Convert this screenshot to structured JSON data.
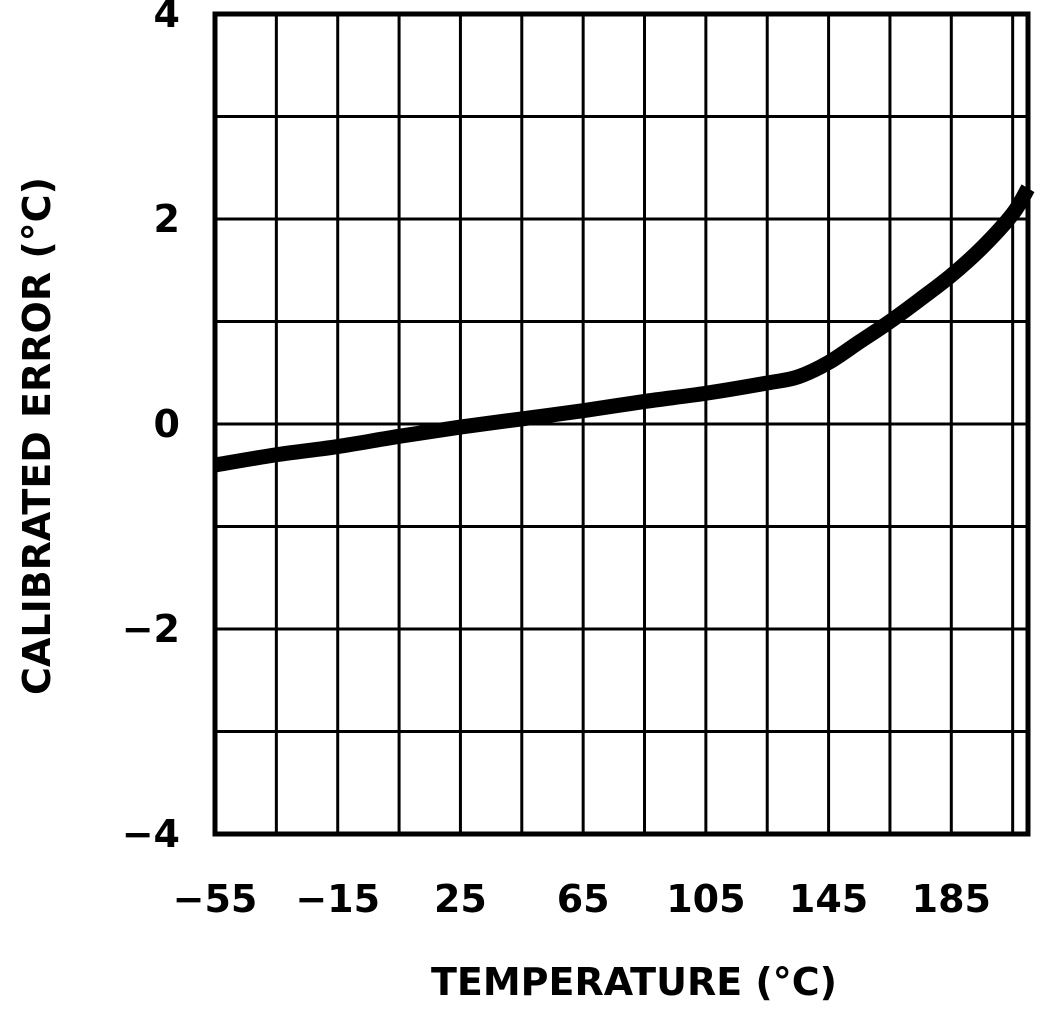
{
  "chart_data": {
    "type": "line",
    "title": "",
    "xlabel": "TEMPERATURE (°C)",
    "ylabel": "CALIBRATED ERROR (°C)",
    "xlim": [
      -55,
      210
    ],
    "ylim": [
      -4,
      4
    ],
    "grid": true,
    "x_ticks": [
      -55,
      -15,
      25,
      65,
      105,
      145,
      185
    ],
    "x_tick_labels": [
      "−55",
      "−15",
      "25",
      "65",
      "105",
      "145",
      "185"
    ],
    "y_ticks": [
      -4,
      -2,
      0,
      2,
      4
    ],
    "y_tick_labels": [
      "−4",
      "−2",
      "0",
      "2",
      "4"
    ],
    "x_gridlines": [
      -55,
      -35,
      -15,
      5,
      25,
      45,
      65,
      85,
      105,
      125,
      145,
      165,
      185,
      205,
      210
    ],
    "y_gridlines": [
      -4,
      -3,
      -2,
      -1,
      0,
      1,
      2,
      3,
      4
    ],
    "series": [
      {
        "name": "Calibrated Error",
        "color": "#000000",
        "x": [
          -55,
          -35,
          -15,
          5,
          25,
          45,
          65,
          85,
          105,
          125,
          135,
          145,
          155,
          165,
          175,
          185,
          195,
          205,
          210
        ],
        "y": [
          -0.4,
          -0.3,
          -0.22,
          -0.12,
          -0.03,
          0.05,
          0.13,
          0.22,
          0.3,
          0.4,
          0.46,
          0.6,
          0.8,
          1.0,
          1.22,
          1.45,
          1.72,
          2.05,
          2.3
        ]
      }
    ]
  }
}
